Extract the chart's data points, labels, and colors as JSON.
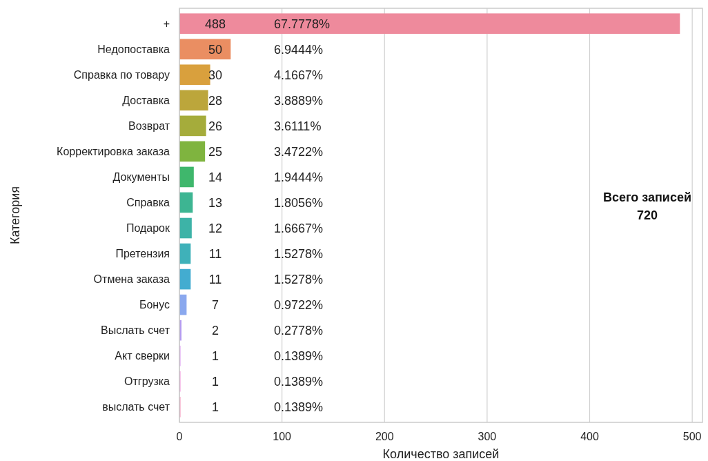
{
  "chart_data": {
    "type": "bar",
    "orientation": "horizontal",
    "xlabel": "Количество записей",
    "ylabel": "Категория",
    "categories": [
      "+",
      "Недопоставка",
      "Справка по товару",
      "Доставка",
      "Возврат",
      "Корректировка заказа",
      "Документы",
      "Справка",
      "Подарок",
      "Претензия",
      "Отмена заказа",
      "Бонус",
      "Выслать счет",
      "Акт сверки",
      "Отгрузка",
      "выслать счет"
    ],
    "values": [
      488,
      50,
      30,
      28,
      26,
      25,
      14,
      13,
      12,
      11,
      11,
      7,
      2,
      1,
      1,
      1
    ],
    "colors": [
      "#ee8a9c",
      "#ea8e62",
      "#d9a03d",
      "#bca63b",
      "#a5ac3b",
      "#7fb43f",
      "#3fb76c",
      "#3db592",
      "#3db3a7",
      "#3fb1b9",
      "#43acd0",
      "#8aa8ee",
      "#b59bf0",
      "#d790ef",
      "#ee8ad6",
      "#f28ab4"
    ],
    "data_labels": true,
    "xlim": [
      0,
      510
    ],
    "xticks": [
      0,
      100,
      200,
      300,
      400,
      500
    ],
    "grid": "x",
    "annotations": [
      "67.7778%",
      "6.9444%",
      "4.1667%",
      "3.8889%",
      "3.6111%",
      "3.4722%",
      "1.9444%",
      "1.8056%",
      "1.6667%",
      "1.5278%",
      "1.5278%",
      "0.9722%",
      "0.2778%",
      "0.1389%",
      "0.1389%",
      "0.1389%",
      "Всего записей\n720"
    ]
  }
}
